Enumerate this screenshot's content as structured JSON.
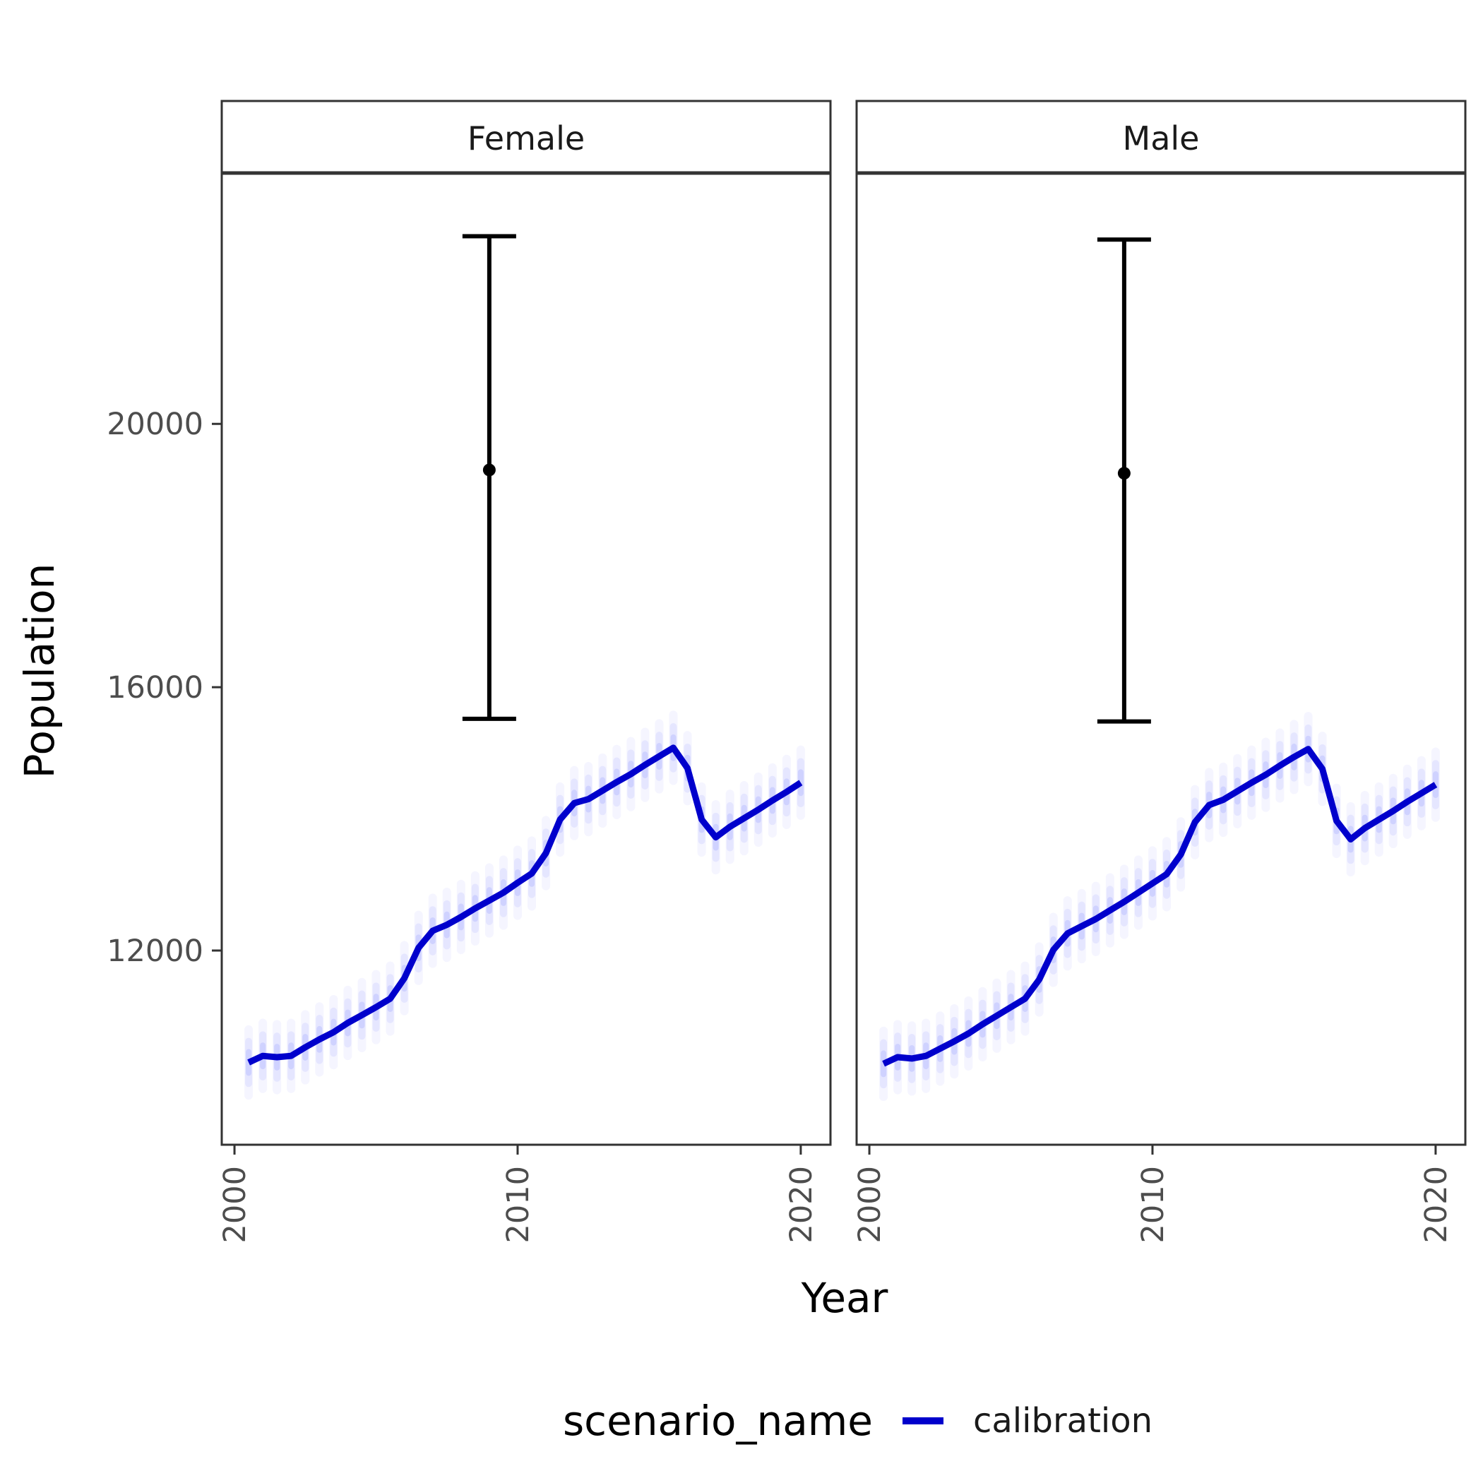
{
  "chart_data": {
    "type": "line",
    "title": "",
    "xlabel": "Year",
    "ylabel": "Population",
    "xlim": [
      1999.55,
      2021.05
    ],
    "ylim": [
      9050,
      23800
    ],
    "x_ticks": [
      2000,
      2010,
      2020
    ],
    "x_tick_labels": [
      "2000",
      "2010",
      "2020"
    ],
    "y_ticks": [
      12000,
      16000,
      20000
    ],
    "y_tick_labels": [
      "12000",
      "16000",
      "20000"
    ],
    "grid": false,
    "legend": {
      "title": "scenario_name",
      "position": "bottom",
      "entries": [
        {
          "label": "calibration",
          "color": "#0000cc"
        }
      ]
    },
    "line_color": "#0000cc",
    "band_color": "#3344ff",
    "errorbar_color": "#000000",
    "panels": [
      {
        "strip_label": "Female",
        "series": [
          {
            "name": "calibration",
            "x": [
              2000.5,
              2001.0,
              2001.5,
              2002.0,
              2002.5,
              2003.0,
              2003.5,
              2004.0,
              2004.5,
              2005.0,
              2005.5,
              2006.0,
              2006.5,
              2007.0,
              2007.5,
              2008.0,
              2008.5,
              2009.0,
              2009.5,
              2010.0,
              2010.5,
              2011.0,
              2011.5,
              2012.0,
              2012.5,
              2013.0,
              2013.5,
              2014.0,
              2014.5,
              2015.0,
              2015.5,
              2016.0,
              2016.5,
              2017.0,
              2017.5,
              2018.0,
              2018.5,
              2019.0,
              2019.5,
              2020.0
            ],
            "y": [
              10300,
              10400,
              10380,
              10400,
              10530,
              10650,
              10760,
              10900,
              11020,
              11140,
              11270,
              11580,
              12040,
              12300,
              12390,
              12510,
              12640,
              12760,
              12880,
              13030,
              13170,
              13480,
              13990,
              14240,
              14300,
              14430,
              14560,
              14680,
              14820,
              14950,
              15080,
              14770,
              13990,
              13720,
              13880,
              14010,
              14140,
              14280,
              14410,
              14550
            ]
          }
        ],
        "errorbar": {
          "x": 2009.0,
          "y": 19300,
          "ymin": 15520,
          "ymax": 22850
        }
      },
      {
        "strip_label": "Male",
        "series": [
          {
            "name": "calibration",
            "x": [
              2000.5,
              2001.0,
              2001.5,
              2002.0,
              2002.5,
              2003.0,
              2003.5,
              2004.0,
              2004.5,
              2005.0,
              2005.5,
              2006.0,
              2006.5,
              2007.0,
              2007.5,
              2008.0,
              2008.5,
              2009.0,
              2009.5,
              2010.0,
              2010.5,
              2011.0,
              2011.5,
              2012.0,
              2012.5,
              2013.0,
              2013.5,
              2014.0,
              2014.5,
              2015.0,
              2015.5,
              2016.0,
              2016.5,
              2017.0,
              2017.5,
              2018.0,
              2018.5,
              2019.0,
              2019.5,
              2020.0
            ],
            "y": [
              10280,
              10380,
              10360,
              10400,
              10510,
              10620,
              10740,
              10880,
              11010,
              11140,
              11270,
              11560,
              12010,
              12260,
              12370,
              12480,
              12610,
              12740,
              12880,
              13020,
              13160,
              13460,
              13950,
              14210,
              14290,
              14420,
              14550,
              14670,
              14810,
              14940,
              15060,
              14760,
              13970,
              13690,
              13860,
              13990,
              14120,
              14260,
              14390,
              14520
            ]
          }
        ],
        "errorbar": {
          "x": 2009.0,
          "y": 19250,
          "ymin": 15480,
          "ymax": 22800
        }
      }
    ]
  }
}
